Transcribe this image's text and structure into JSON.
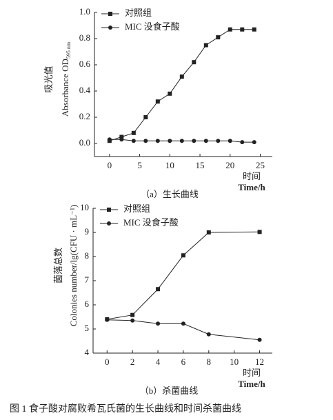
{
  "chart_data": [
    {
      "type": "line",
      "title": "（a）生长曲线",
      "x_label_cn": "时间",
      "x_label": "Time/h",
      "y_label_cn": "吸光值",
      "y_label": "Absorbance OD",
      "y_label_sub": "595 nm",
      "x": [
        0,
        2,
        4,
        6,
        8,
        10,
        12,
        14,
        16,
        18,
        20,
        22,
        24
      ],
      "series": [
        {
          "name": "对照组",
          "color": "#222222",
          "marker": "square",
          "values": [
            0.02,
            0.05,
            0.08,
            0.2,
            0.32,
            0.38,
            0.51,
            0.62,
            0.75,
            0.81,
            0.87,
            0.87,
            0.87
          ]
        },
        {
          "name": "MIC 没食子酸",
          "color": "#222222",
          "marker": "circle",
          "values": [
            0.03,
            0.03,
            0.02,
            0.02,
            0.02,
            0.02,
            0.02,
            0.02,
            0.02,
            0.02,
            0.02,
            0.01,
            0.01
          ]
        }
      ],
      "xlim": [
        -2.5,
        27
      ],
      "xticks": [
        0,
        5,
        10,
        15,
        20,
        25
      ],
      "ylim": [
        -0.1,
        1.0
      ],
      "yticks": [
        {
          "value": 0,
          "label": "0.0"
        },
        0.2,
        0.4,
        0.6,
        0.8,
        {
          "value": 1,
          "label": "1.0"
        }
      ],
      "legend": "upper left",
      "grid": false
    },
    {
      "type": "line",
      "title": "（b）杀菌曲线",
      "x_label_cn": "时间",
      "x_label": "Time/h",
      "y_label_cn": "菌落总数",
      "y_label": "Colonies number/lg(CFU · mL⁻¹)",
      "x": [
        0,
        2,
        4,
        6,
        8,
        12
      ],
      "series": [
        {
          "name": "对照组",
          "color": "#222222",
          "marker": "square",
          "values": [
            5.4,
            5.58,
            6.65,
            8.05,
            9.0,
            9.02
          ]
        },
        {
          "name": "MIC 没食子酸",
          "color": "#222222",
          "marker": "circle",
          "values": [
            5.38,
            5.35,
            5.22,
            5.22,
            4.78,
            4.55
          ]
        }
      ],
      "xlim": [
        -1.1,
        13
      ],
      "xticks": [
        0,
        2,
        4,
        6,
        8,
        10,
        12
      ],
      "ylim": [
        4,
        10
      ],
      "yticks": [
        4,
        5,
        6,
        7,
        8,
        9,
        10
      ],
      "legend": "upper left",
      "grid": false
    }
  ],
  "caption": "图 1   食子酸对腐败希瓦氏菌的生长曲线和时间杀菌曲线"
}
